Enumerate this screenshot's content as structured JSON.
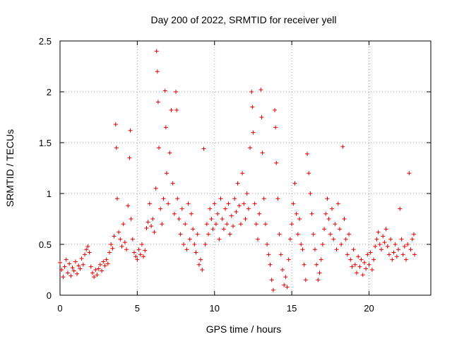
{
  "chart_data": {
    "type": "scatter",
    "title": "Day 200 of 2022, SRMTID for receiver yell",
    "xlabel": "GPS time / hours",
    "ylabel": "SRMTID / TECUs",
    "xlim": [
      0,
      24
    ],
    "ylim": [
      0,
      2.5
    ],
    "xticks": [
      0,
      5,
      10,
      15,
      20
    ],
    "yticks": [
      0,
      0.5,
      1,
      1.5,
      2,
      2.5
    ],
    "xtick_labels": [
      "0",
      "5",
      "10",
      "15",
      "20"
    ],
    "ytick_labels": [
      "0",
      "0.5",
      "1",
      "1.5",
      "2",
      "2.5"
    ],
    "grid": true,
    "marker": "+",
    "color": "#e00000",
    "series": [
      {
        "name": "yell",
        "points": [
          [
            0.0,
            0.32
          ],
          [
            0.1,
            0.25
          ],
          [
            0.2,
            0.18
          ],
          [
            0.3,
            0.28
          ],
          [
            0.4,
            0.35
          ],
          [
            0.5,
            0.22
          ],
          [
            0.6,
            0.31
          ],
          [
            0.7,
            0.19
          ],
          [
            0.8,
            0.27
          ],
          [
            0.9,
            0.24
          ],
          [
            1.0,
            0.33
          ],
          [
            1.1,
            0.21
          ],
          [
            1.2,
            0.29
          ],
          [
            1.3,
            0.26
          ],
          [
            1.4,
            0.36
          ],
          [
            1.5,
            0.3
          ],
          [
            1.6,
            0.4
          ],
          [
            1.7,
            0.45
          ],
          [
            1.8,
            0.48
          ],
          [
            1.9,
            0.42
          ],
          [
            2.0,
            0.28
          ],
          [
            2.1,
            0.22
          ],
          [
            2.2,
            0.18
          ],
          [
            2.3,
            0.25
          ],
          [
            2.4,
            0.2
          ],
          [
            2.5,
            0.26
          ],
          [
            2.6,
            0.3
          ],
          [
            2.7,
            0.24
          ],
          [
            2.8,
            0.33
          ],
          [
            2.9,
            0.29
          ],
          [
            3.0,
            0.35
          ],
          [
            3.1,
            0.31
          ],
          [
            3.2,
            0.42
          ],
          [
            3.3,
            0.5
          ],
          [
            3.4,
            0.46
          ],
          [
            3.5,
            0.58
          ],
          [
            3.6,
            1.68
          ],
          [
            3.65,
            1.45
          ],
          [
            3.7,
            0.95
          ],
          [
            3.8,
            0.62
          ],
          [
            3.9,
            0.55
          ],
          [
            4.0,
            0.48
          ],
          [
            4.1,
            0.7
          ],
          [
            4.2,
            0.52
          ],
          [
            4.3,
            0.45
          ],
          [
            4.4,
            0.88
          ],
          [
            4.5,
            1.35
          ],
          [
            4.55,
            1.62
          ],
          [
            4.6,
            0.75
          ],
          [
            4.7,
            0.55
          ],
          [
            4.8,
            0.42
          ],
          [
            4.9,
            0.38
          ],
          [
            5.0,
            0.35
          ],
          [
            5.1,
            0.45
          ],
          [
            5.2,
            0.4
          ],
          [
            5.3,
            0.5
          ],
          [
            5.4,
            0.38
          ],
          [
            5.5,
            0.44
          ],
          [
            5.6,
            0.66
          ],
          [
            5.7,
            0.72
          ],
          [
            5.8,
            0.9
          ],
          [
            5.9,
            0.68
          ],
          [
            6.0,
            0.75
          ],
          [
            6.1,
            0.62
          ],
          [
            6.2,
            1.05
          ],
          [
            6.25,
            2.4
          ],
          [
            6.3,
            2.2
          ],
          [
            6.35,
            1.9
          ],
          [
            6.4,
            1.45
          ],
          [
            6.5,
            0.85
          ],
          [
            6.6,
            0.7
          ],
          [
            6.7,
            0.95
          ],
          [
            6.8,
            2.01
          ],
          [
            6.85,
            1.65
          ],
          [
            6.9,
            1.2
          ],
          [
            7.0,
            0.9
          ],
          [
            7.1,
            1.4
          ],
          [
            7.2,
            1.82
          ],
          [
            7.3,
            1.1
          ],
          [
            7.4,
            0.8
          ],
          [
            7.5,
            2.0
          ],
          [
            7.55,
            1.82
          ],
          [
            7.6,
            0.95
          ],
          [
            7.7,
            0.75
          ],
          [
            7.8,
            0.6
          ],
          [
            7.9,
            0.85
          ],
          [
            8.0,
            0.5
          ],
          [
            8.1,
            0.7
          ],
          [
            8.2,
            0.45
          ],
          [
            8.3,
            0.9
          ],
          [
            8.4,
            0.55
          ],
          [
            8.5,
            0.8
          ],
          [
            8.6,
            0.65
          ],
          [
            8.7,
            0.5
          ],
          [
            8.8,
            0.42
          ],
          [
            8.9,
            0.6
          ],
          [
            9.0,
            0.3
          ],
          [
            9.1,
            0.35
          ],
          [
            9.2,
            0.25
          ],
          [
            9.3,
            1.44
          ],
          [
            9.4,
            0.5
          ],
          [
            9.5,
            0.7
          ],
          [
            9.6,
            0.6
          ],
          [
            9.7,
            0.85
          ],
          [
            9.8,
            0.75
          ],
          [
            9.9,
            0.65
          ],
          [
            10.0,
            0.9
          ],
          [
            10.1,
            0.7
          ],
          [
            10.2,
            0.8
          ],
          [
            10.3,
            0.55
          ],
          [
            10.4,
            0.95
          ],
          [
            10.5,
            0.75
          ],
          [
            10.6,
            0.65
          ],
          [
            10.7,
            0.85
          ],
          [
            10.8,
            0.7
          ],
          [
            10.9,
            0.9
          ],
          [
            11.0,
            0.6
          ],
          [
            11.1,
            0.78
          ],
          [
            11.2,
            0.68
          ],
          [
            11.3,
            0.95
          ],
          [
            11.4,
            0.82
          ],
          [
            11.5,
            1.1
          ],
          [
            11.6,
            0.88
          ],
          [
            11.7,
            0.7
          ],
          [
            11.8,
            1.2
          ],
          [
            11.9,
            0.9
          ],
          [
            12.0,
            0.75
          ],
          [
            12.1,
            1.0
          ],
          [
            12.2,
            0.85
          ],
          [
            12.3,
            1.45
          ],
          [
            12.4,
            2.0
          ],
          [
            12.45,
            1.85
          ],
          [
            12.5,
            1.6
          ],
          [
            12.6,
            0.9
          ],
          [
            12.7,
            0.7
          ],
          [
            12.8,
            0.55
          ],
          [
            12.9,
            0.8
          ],
          [
            13.0,
            2.02
          ],
          [
            13.05,
            1.75
          ],
          [
            13.1,
            1.4
          ],
          [
            13.2,
            0.95
          ],
          [
            13.3,
            0.7
          ],
          [
            13.4,
            0.5
          ],
          [
            13.5,
            0.4
          ],
          [
            13.6,
            0.3
          ],
          [
            13.7,
            0.15
          ],
          [
            13.8,
            0.05
          ],
          [
            13.9,
            1.82
          ],
          [
            13.95,
            1.65
          ],
          [
            14.0,
            1.3
          ],
          [
            14.1,
            0.95
          ],
          [
            14.2,
            0.6
          ],
          [
            14.3,
            0.4
          ],
          [
            14.4,
            0.25
          ],
          [
            14.5,
            0.1
          ],
          [
            14.6,
            0.18
          ],
          [
            14.7,
            0.08
          ],
          [
            14.8,
            0.35
          ],
          [
            14.9,
            0.55
          ],
          [
            15.0,
            0.7
          ],
          [
            15.1,
            0.9
          ],
          [
            15.2,
            1.1
          ],
          [
            15.3,
            0.8
          ],
          [
            15.4,
            0.6
          ],
          [
            15.5,
            0.75
          ],
          [
            15.6,
            0.5
          ],
          [
            15.7,
            0.45
          ],
          [
            15.8,
            0.3
          ],
          [
            15.9,
            0.15
          ],
          [
            16.0,
            1.39
          ],
          [
            16.1,
            1.2
          ],
          [
            16.2,
            1.0
          ],
          [
            16.3,
            0.8
          ],
          [
            16.4,
            0.6
          ],
          [
            16.5,
            0.45
          ],
          [
            16.6,
            0.3
          ],
          [
            16.7,
            0.15
          ],
          [
            16.8,
            0.22
          ],
          [
            16.9,
            0.35
          ],
          [
            17.0,
            0.5
          ],
          [
            17.1,
            0.65
          ],
          [
            17.2,
            0.8
          ],
          [
            17.3,
            0.95
          ],
          [
            17.4,
            0.75
          ],
          [
            17.5,
            0.6
          ],
          [
            17.6,
            0.85
          ],
          [
            17.7,
            0.55
          ],
          [
            17.8,
            0.7
          ],
          [
            17.9,
            0.45
          ],
          [
            18.0,
            0.9
          ],
          [
            18.1,
            0.65
          ],
          [
            18.2,
            0.5
          ],
          [
            18.3,
            1.46
          ],
          [
            18.4,
            0.75
          ],
          [
            18.5,
            0.55
          ],
          [
            18.6,
            0.4
          ],
          [
            18.7,
            0.6
          ],
          [
            18.8,
            0.35
          ],
          [
            18.9,
            0.28
          ],
          [
            19.0,
            0.45
          ],
          [
            19.1,
            0.3
          ],
          [
            19.2,
            0.22
          ],
          [
            19.3,
            0.38
          ],
          [
            19.4,
            0.28
          ],
          [
            19.5,
            0.35
          ],
          [
            19.6,
            0.2
          ],
          [
            19.7,
            0.32
          ],
          [
            19.8,
            0.26
          ],
          [
            19.9,
            0.4
          ],
          [
            20.0,
            0.3
          ],
          [
            20.1,
            0.42
          ],
          [
            20.2,
            0.25
          ],
          [
            20.3,
            0.35
          ],
          [
            20.4,
            0.48
          ],
          [
            20.5,
            0.55
          ],
          [
            20.6,
            0.62
          ],
          [
            20.7,
            0.5
          ],
          [
            20.8,
            0.45
          ],
          [
            20.9,
            0.58
          ],
          [
            21.0,
            0.52
          ],
          [
            21.1,
            0.65
          ],
          [
            21.2,
            0.48
          ],
          [
            21.3,
            0.4
          ],
          [
            21.4,
            0.55
          ],
          [
            21.5,
            0.35
          ],
          [
            21.6,
            0.42
          ],
          [
            21.7,
            0.5
          ],
          [
            21.8,
            0.38
          ],
          [
            21.9,
            0.45
          ],
          [
            22.0,
            0.85
          ],
          [
            22.1,
            0.55
          ],
          [
            22.2,
            0.4
          ],
          [
            22.3,
            0.48
          ],
          [
            22.4,
            0.35
          ],
          [
            22.5,
            0.5
          ],
          [
            22.6,
            1.2
          ],
          [
            22.7,
            0.45
          ],
          [
            22.8,
            0.55
          ],
          [
            22.9,
            0.6
          ],
          [
            22.95,
            0.4
          ]
        ]
      }
    ]
  }
}
